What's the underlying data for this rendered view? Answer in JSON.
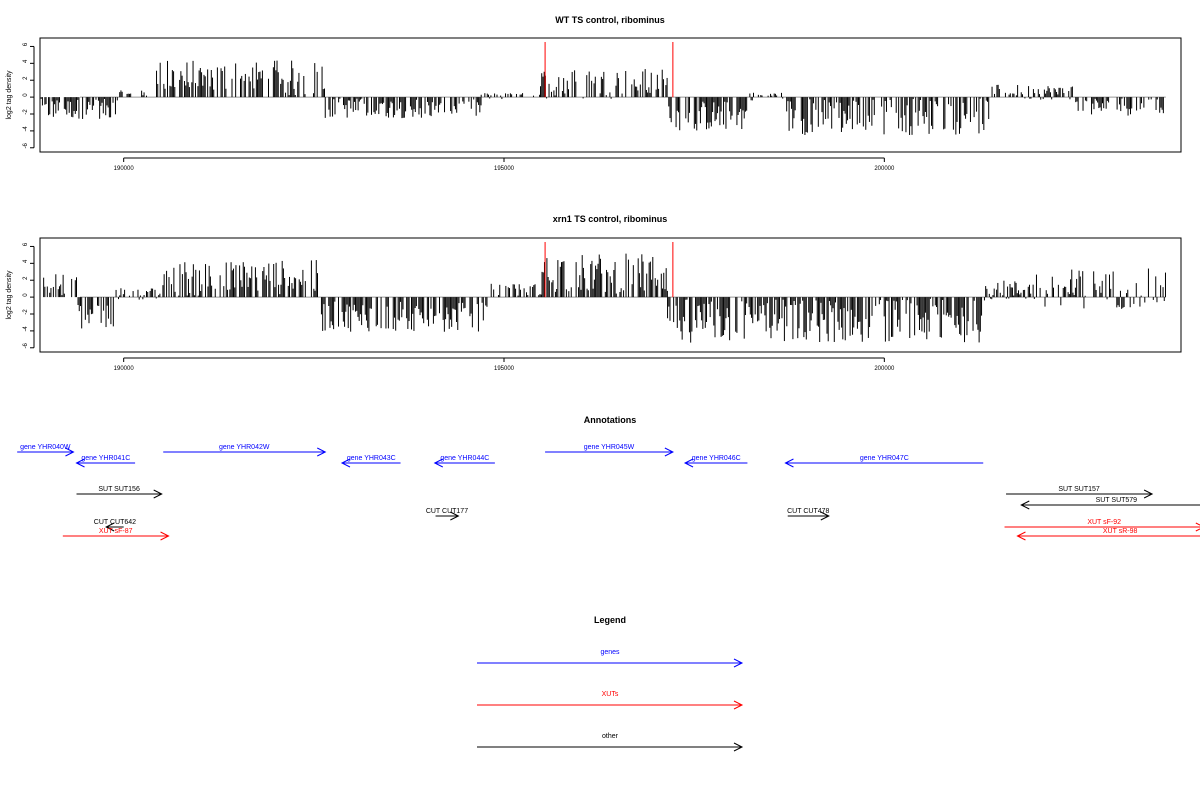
{
  "colors": {
    "gene": "#0000ff",
    "xut": "#ff0000",
    "other": "#000000",
    "marker": "#ff0000",
    "bar": "#000000",
    "baseline": "#999999"
  },
  "chart_data": [
    {
      "type": "bar",
      "title": "WT TS control, ribominus",
      "ylabel": "log2 tag density",
      "xlim": [
        188900,
        203900
      ],
      "ylim": [
        -6.5,
        7
      ],
      "xticks": [
        "190000",
        "195000",
        "200000"
      ],
      "xtick_values": [
        190000,
        195000,
        200000
      ],
      "yticks": [
        "6",
        "4",
        "2",
        "0",
        "-2",
        "-4",
        "-6"
      ],
      "ytick_values": [
        6,
        4,
        2,
        0,
        -2,
        -4,
        -6
      ],
      "markers": [
        195540,
        197220
      ],
      "segments": [
        {
          "x0": 188900,
          "x1": 189900,
          "mean": -1.4,
          "amp": 1.2
        },
        {
          "x0": 189900,
          "x1": 190400,
          "mean": 0.2,
          "amp": 0.6
        },
        {
          "x0": 190400,
          "x1": 192650,
          "mean": 2.2,
          "amp": 2.2
        },
        {
          "x0": 192650,
          "x1": 194700,
          "mean": -1.3,
          "amp": 1.2
        },
        {
          "x0": 194700,
          "x1": 195480,
          "mean": 0.1,
          "amp": 0.4
        },
        {
          "x0": 195480,
          "x1": 197150,
          "mean": 1.6,
          "amp": 1.8
        },
        {
          "x0": 197150,
          "x1": 198200,
          "mean": -2.2,
          "amp": 1.8
        },
        {
          "x0": 198200,
          "x1": 198700,
          "mean": 0.1,
          "amp": 0.5
        },
        {
          "x0": 198700,
          "x1": 201400,
          "mean": -2.3,
          "amp": 2.2
        },
        {
          "x0": 201400,
          "x1": 202500,
          "mean": 0.6,
          "amp": 0.9
        },
        {
          "x0": 202500,
          "x1": 203700,
          "mean": -1.1,
          "amp": 1.1
        }
      ]
    },
    {
      "type": "bar",
      "title": "xrn1 TS control, ribominus",
      "ylabel": "log2 tag density",
      "xlim": [
        188900,
        203900
      ],
      "ylim": [
        -6.5,
        7
      ],
      "xticks": [
        "190000",
        "195000",
        "200000"
      ],
      "xtick_values": [
        190000,
        195000,
        200000
      ],
      "yticks": [
        "6",
        "4",
        "2",
        "0",
        "-2",
        "-4",
        "-6"
      ],
      "ytick_values": [
        6,
        4,
        2,
        0,
        -2,
        -4,
        -6
      ],
      "markers": [
        195540,
        197220
      ],
      "segments": [
        {
          "x0": 188900,
          "x1": 189400,
          "mean": 1.6,
          "amp": 1.4
        },
        {
          "x0": 189400,
          "x1": 189900,
          "mean": -2.5,
          "amp": 1.6
        },
        {
          "x0": 189900,
          "x1": 190500,
          "mean": 0.4,
          "amp": 0.7
        },
        {
          "x0": 190500,
          "x1": 192600,
          "mean": 2.2,
          "amp": 2.2
        },
        {
          "x0": 192600,
          "x1": 194800,
          "mean": -2.3,
          "amp": 1.8
        },
        {
          "x0": 194800,
          "x1": 195500,
          "mean": 0.8,
          "amp": 0.8
        },
        {
          "x0": 195500,
          "x1": 197150,
          "mean": 2.8,
          "amp": 2.4
        },
        {
          "x0": 197150,
          "x1": 201300,
          "mean": -2.8,
          "amp": 2.6
        },
        {
          "x0": 201300,
          "x1": 202000,
          "mean": 0.8,
          "amp": 1.2
        },
        {
          "x0": 202000,
          "x1": 203700,
          "mean": 1.0,
          "amp": 2.4
        }
      ]
    }
  ],
  "annotations": {
    "title": "Annotations",
    "features": [
      {
        "label": "gene YHR040W",
        "kind": "gene",
        "start": 188600,
        "end": 189340,
        "row": 0
      },
      {
        "label": "gene YHR041C",
        "kind": "gene",
        "start": 190150,
        "end": 189380,
        "row": 1
      },
      {
        "label": "gene YHR042W",
        "kind": "gene",
        "start": 190520,
        "end": 192650,
        "row": 0
      },
      {
        "label": "gene YHR043C",
        "kind": "gene",
        "start": 193640,
        "end": 192870,
        "row": 1
      },
      {
        "label": "gene YHR044C",
        "kind": "gene",
        "start": 194880,
        "end": 194090,
        "row": 1
      },
      {
        "label": "gene YHR045W",
        "kind": "gene",
        "start": 195540,
        "end": 197220,
        "row": 0
      },
      {
        "label": "gene YHR046C",
        "kind": "gene",
        "start": 198200,
        "end": 197380,
        "row": 1
      },
      {
        "label": "gene YHR047C",
        "kind": "gene",
        "start": 201300,
        "end": 198700,
        "row": 1
      },
      {
        "label": "SUT SUT156",
        "kind": "other",
        "start": 189380,
        "end": 190500,
        "row": 3
      },
      {
        "label": "SUT SUT157",
        "kind": "other",
        "start": 201600,
        "end": 203520,
        "row": 3
      },
      {
        "label": "SUT SUT579",
        "kind": "other",
        "start": 204300,
        "end": 201800,
        "row": 4
      },
      {
        "label": "CUT CUT642",
        "kind": "other",
        "start": 190000,
        "end": 189770,
        "row": 6
      },
      {
        "label": "CUT CUT177",
        "kind": "other",
        "start": 194100,
        "end": 194400,
        "row": 5
      },
      {
        "label": "CUT CUT478",
        "kind": "other",
        "start": 198730,
        "end": 199270,
        "row": 5
      },
      {
        "label": "XUT sF-87",
        "kind": "xut",
        "start": 189200,
        "end": 190590,
        "row": 7
      },
      {
        "label": "XUT sF-92",
        "kind": "xut",
        "start": 201580,
        "end": 204200,
        "row": 6
      },
      {
        "label": "XUT sR-98",
        "kind": "xut",
        "start": 204450,
        "end": 201750,
        "row": 7
      }
    ]
  },
  "legend": {
    "title": "Legend",
    "items": [
      {
        "label": "genes",
        "kind": "gene"
      },
      {
        "label": "XUTs",
        "kind": "xut"
      },
      {
        "label": "other",
        "kind": "other"
      }
    ]
  }
}
